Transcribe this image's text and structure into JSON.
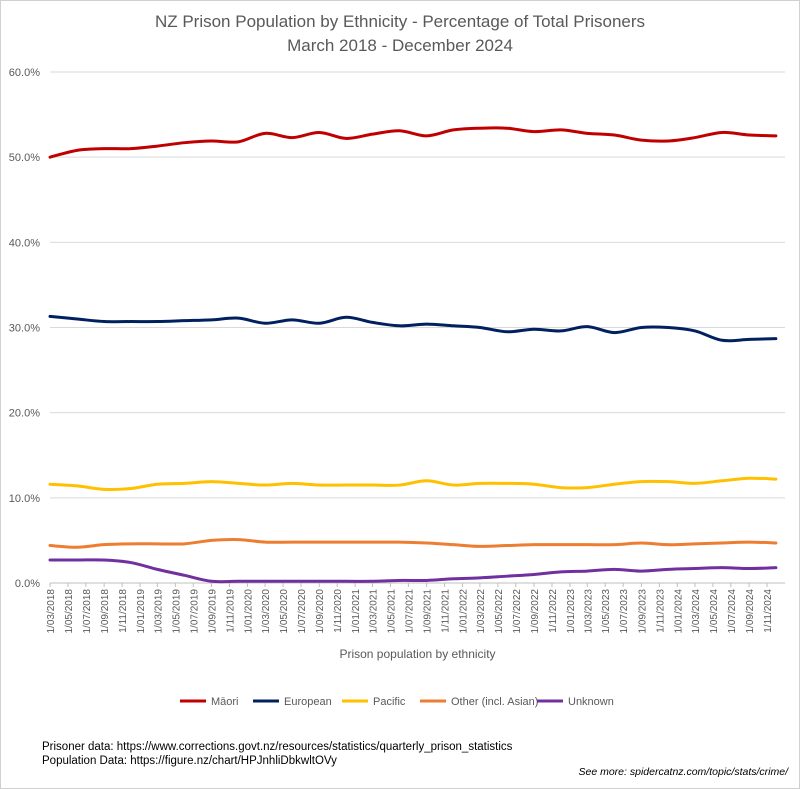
{
  "header": {
    "title": "NZ Prison Population by Ethnicity - Percentage of Total Prisoners",
    "subtitle": "March 2018 - December 2024"
  },
  "footer": {
    "prisoner_source": "Prisoner data: https://www.corrections.govt.nz/resources/statistics/quarterly_prison_statistics",
    "population_source": "Population Data: https://figure.nz/chart/HPJnhliDbkwltOVy",
    "see_more": "See more: spidercatnz.com/topic/stats/crime/"
  },
  "chart_data": {
    "type": "line",
    "title": "NZ Prison Population by Ethnicity - Percentage of Total Prisoners",
    "subtitle": "March 2018 - December 2024",
    "xlabel": "Prison population by ethnicity",
    "ylabel": "",
    "ylim": [
      0,
      60
    ],
    "yticks": [
      0,
      10,
      20,
      30,
      40,
      50,
      60
    ],
    "ytick_labels": [
      "0.0%",
      "10.0%",
      "20.0%",
      "30.0%",
      "40.0%",
      "50.0%",
      "60.0%"
    ],
    "grid": true,
    "legend_position": "bottom",
    "x": [
      "1/03/2018",
      "1/05/2018",
      "1/07/2018",
      "1/09/2018",
      "1/11/2018",
      "1/01/2019",
      "1/03/2019",
      "1/05/2019",
      "1/07/2019",
      "1/09/2019",
      "1/11/2019",
      "1/01/2020",
      "1/03/2020",
      "1/05/2020",
      "1/07/2020",
      "1/09/2020",
      "1/11/2020",
      "1/01/2021",
      "1/03/2021",
      "1/05/2021",
      "1/07/2021",
      "1/09/2021",
      "1/11/2021",
      "1/01/2022",
      "1/03/2022",
      "1/05/2022",
      "1/07/2022",
      "1/09/2022",
      "1/11/2022",
      "1/01/2023",
      "1/03/2023",
      "1/05/2023",
      "1/07/2023",
      "1/09/2023",
      "1/11/2023",
      "1/01/2024",
      "1/03/2024",
      "1/05/2024",
      "1/07/2024",
      "1/09/2024",
      "1/11/2024"
    ],
    "series": [
      {
        "name": "Māori",
        "color": "#c00000",
        "points": [
          [
            "1/03/2018",
            50.0
          ],
          [
            "1/06/2018",
            50.8
          ],
          [
            "1/09/2018",
            51.0
          ],
          [
            "1/12/2018",
            51.0
          ],
          [
            "1/03/2019",
            51.3
          ],
          [
            "1/06/2019",
            51.7
          ],
          [
            "1/09/2019",
            51.9
          ],
          [
            "1/12/2019",
            51.8
          ],
          [
            "1/03/2020",
            52.8
          ],
          [
            "1/06/2020",
            52.3
          ],
          [
            "1/09/2020",
            52.9
          ],
          [
            "1/12/2020",
            52.2
          ],
          [
            "1/03/2021",
            52.7
          ],
          [
            "1/06/2021",
            53.1
          ],
          [
            "1/09/2021",
            52.5
          ],
          [
            "1/12/2021",
            53.2
          ],
          [
            "1/03/2022",
            53.4
          ],
          [
            "1/06/2022",
            53.4
          ],
          [
            "1/09/2022",
            53.0
          ],
          [
            "1/12/2022",
            53.2
          ],
          [
            "1/03/2023",
            52.8
          ],
          [
            "1/06/2023",
            52.6
          ],
          [
            "1/09/2023",
            52.0
          ],
          [
            "1/12/2023",
            51.9
          ],
          [
            "1/03/2024",
            52.3
          ],
          [
            "1/06/2024",
            52.9
          ],
          [
            "1/09/2024",
            52.6
          ],
          [
            "1/12/2024",
            52.5
          ]
        ]
      },
      {
        "name": "European",
        "color": "#002060",
        "points": [
          [
            "1/03/2018",
            31.3
          ],
          [
            "1/06/2018",
            31.0
          ],
          [
            "1/09/2018",
            30.7
          ],
          [
            "1/12/2018",
            30.7
          ],
          [
            "1/03/2019",
            30.7
          ],
          [
            "1/06/2019",
            30.8
          ],
          [
            "1/09/2019",
            30.9
          ],
          [
            "1/12/2019",
            31.1
          ],
          [
            "1/03/2020",
            30.5
          ],
          [
            "1/06/2020",
            30.9
          ],
          [
            "1/09/2020",
            30.5
          ],
          [
            "1/12/2020",
            31.2
          ],
          [
            "1/03/2021",
            30.6
          ],
          [
            "1/06/2021",
            30.2
          ],
          [
            "1/09/2021",
            30.4
          ],
          [
            "1/12/2021",
            30.2
          ],
          [
            "1/03/2022",
            30.0
          ],
          [
            "1/06/2022",
            29.5
          ],
          [
            "1/09/2022",
            29.8
          ],
          [
            "1/12/2022",
            29.6
          ],
          [
            "1/03/2023",
            30.1
          ],
          [
            "1/06/2023",
            29.4
          ],
          [
            "1/09/2023",
            30.0
          ],
          [
            "1/12/2023",
            30.0
          ],
          [
            "1/03/2024",
            29.6
          ],
          [
            "1/06/2024",
            28.5
          ],
          [
            "1/09/2024",
            28.6
          ],
          [
            "1/12/2024",
            28.7
          ]
        ]
      },
      {
        "name": "Pacific",
        "color": "#ffc000",
        "points": [
          [
            "1/03/2018",
            11.6
          ],
          [
            "1/06/2018",
            11.4
          ],
          [
            "1/09/2018",
            11.0
          ],
          [
            "1/12/2018",
            11.1
          ],
          [
            "1/03/2019",
            11.6
          ],
          [
            "1/06/2019",
            11.7
          ],
          [
            "1/09/2019",
            11.9
          ],
          [
            "1/12/2019",
            11.7
          ],
          [
            "1/03/2020",
            11.5
          ],
          [
            "1/06/2020",
            11.7
          ],
          [
            "1/09/2020",
            11.5
          ],
          [
            "1/12/2020",
            11.5
          ],
          [
            "1/03/2021",
            11.5
          ],
          [
            "1/06/2021",
            11.5
          ],
          [
            "1/09/2021",
            12.0
          ],
          [
            "1/12/2021",
            11.5
          ],
          [
            "1/03/2022",
            11.7
          ],
          [
            "1/06/2022",
            11.7
          ],
          [
            "1/09/2022",
            11.6
          ],
          [
            "1/12/2022",
            11.2
          ],
          [
            "1/03/2023",
            11.2
          ],
          [
            "1/06/2023",
            11.6
          ],
          [
            "1/09/2023",
            11.9
          ],
          [
            "1/12/2023",
            11.9
          ],
          [
            "1/03/2024",
            11.7
          ],
          [
            "1/06/2024",
            12.0
          ],
          [
            "1/09/2024",
            12.3
          ],
          [
            "1/12/2024",
            12.2
          ]
        ]
      },
      {
        "name": "Other (incl. Asian)",
        "color": "#ed7d31",
        "points": [
          [
            "1/03/2018",
            4.4
          ],
          [
            "1/06/2018",
            4.2
          ],
          [
            "1/09/2018",
            4.5
          ],
          [
            "1/12/2018",
            4.6
          ],
          [
            "1/03/2019",
            4.6
          ],
          [
            "1/06/2019",
            4.6
          ],
          [
            "1/09/2019",
            5.0
          ],
          [
            "1/12/2019",
            5.1
          ],
          [
            "1/03/2020",
            4.8
          ],
          [
            "1/06/2020",
            4.8
          ],
          [
            "1/09/2020",
            4.8
          ],
          [
            "1/12/2020",
            4.8
          ],
          [
            "1/03/2021",
            4.8
          ],
          [
            "1/06/2021",
            4.8
          ],
          [
            "1/09/2021",
            4.7
          ],
          [
            "1/12/2021",
            4.5
          ],
          [
            "1/03/2022",
            4.3
          ],
          [
            "1/06/2022",
            4.4
          ],
          [
            "1/09/2022",
            4.5
          ],
          [
            "1/12/2022",
            4.5
          ],
          [
            "1/03/2023",
            4.5
          ],
          [
            "1/06/2023",
            4.5
          ],
          [
            "1/09/2023",
            4.7
          ],
          [
            "1/12/2023",
            4.5
          ],
          [
            "1/03/2024",
            4.6
          ],
          [
            "1/06/2024",
            4.7
          ],
          [
            "1/09/2024",
            4.8
          ],
          [
            "1/12/2024",
            4.7
          ]
        ]
      },
      {
        "name": "Unknown",
        "color": "#7030a0",
        "points": [
          [
            "1/03/2018",
            2.7
          ],
          [
            "1/06/2018",
            2.7
          ],
          [
            "1/09/2018",
            2.7
          ],
          [
            "1/12/2018",
            2.4
          ],
          [
            "1/03/2019",
            1.6
          ],
          [
            "1/06/2019",
            0.9
          ],
          [
            "1/09/2019",
            0.2
          ],
          [
            "1/12/2019",
            0.2
          ],
          [
            "1/03/2020",
            0.2
          ],
          [
            "1/06/2020",
            0.2
          ],
          [
            "1/09/2020",
            0.2
          ],
          [
            "1/12/2020",
            0.2
          ],
          [
            "1/03/2021",
            0.2
          ],
          [
            "1/06/2021",
            0.3
          ],
          [
            "1/09/2021",
            0.3
          ],
          [
            "1/12/2021",
            0.5
          ],
          [
            "1/03/2022",
            0.6
          ],
          [
            "1/06/2022",
            0.8
          ],
          [
            "1/09/2022",
            1.0
          ],
          [
            "1/12/2022",
            1.3
          ],
          [
            "1/03/2023",
            1.4
          ],
          [
            "1/06/2023",
            1.6
          ],
          [
            "1/09/2023",
            1.4
          ],
          [
            "1/12/2023",
            1.6
          ],
          [
            "1/03/2024",
            1.7
          ],
          [
            "1/06/2024",
            1.8
          ],
          [
            "1/09/2024",
            1.7
          ],
          [
            "1/12/2024",
            1.8
          ]
        ]
      }
    ]
  }
}
